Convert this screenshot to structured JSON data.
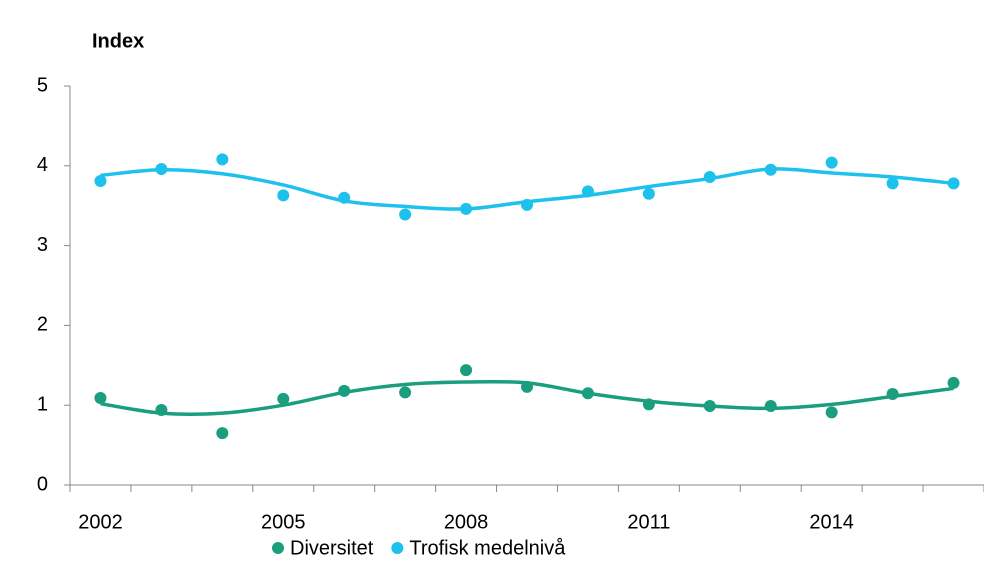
{
  "chart_data": {
    "type": "scatter-trend",
    "y_label": "Index",
    "categories": [
      "2002",
      null,
      null,
      "2005",
      null,
      null,
      "2008",
      null,
      null,
      "2011",
      null,
      null,
      "2014",
      null,
      null
    ],
    "series": [
      {
        "name": "Diversitet",
        "color": "#1a9e7e",
        "values": [
          1.09,
          0.94,
          0.65,
          1.08,
          1.18,
          1.16,
          1.44,
          1.23,
          1.15,
          1.01,
          0.99,
          0.99,
          0.91,
          1.14,
          1.28
        ],
        "trend": [
          1.02,
          0.9,
          0.9,
          1.0,
          1.16,
          1.26,
          1.29,
          1.28,
          1.15,
          1.05,
          0.99,
          0.96,
          1.01,
          1.11,
          1.21
        ]
      },
      {
        "name": "Trofisk medelnivå",
        "color": "#1ec1ec",
        "values": [
          3.81,
          3.96,
          4.08,
          3.63,
          3.6,
          3.39,
          3.46,
          3.51,
          3.68,
          3.65,
          3.86,
          3.95,
          4.04,
          3.78,
          3.78
        ],
        "trend": [
          3.88,
          3.95,
          3.9,
          3.76,
          3.56,
          3.49,
          3.46,
          3.55,
          3.63,
          3.74,
          3.84,
          3.96,
          3.91,
          3.86,
          3.78
        ]
      }
    ],
    "ylim": [
      0,
      5
    ],
    "yticks": [
      0,
      1,
      2,
      3,
      4,
      5
    ],
    "grid": false
  }
}
